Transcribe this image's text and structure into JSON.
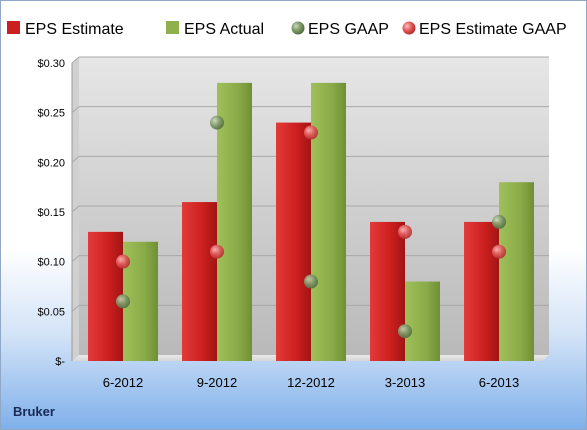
{
  "company": "Bruker",
  "chart_data": {
    "type": "bar",
    "categories": [
      "6-2012",
      "9-2012",
      "12-2012",
      "3-2013",
      "6-2013"
    ],
    "series": [
      {
        "name": "EPS Estimate",
        "kind": "bar",
        "color": "#cc1f1f",
        "values": [
          0.13,
          0.16,
          0.24,
          0.14,
          0.14
        ]
      },
      {
        "name": "EPS Actual",
        "kind": "bar",
        "color": "#8fb04a",
        "values": [
          0.12,
          0.28,
          0.28,
          0.08,
          0.18
        ]
      },
      {
        "name": "EPS GAAP",
        "kind": "marker",
        "color": "#7f9a68",
        "values": [
          0.06,
          0.24,
          0.08,
          0.03,
          0.14
        ]
      },
      {
        "name": "EPS Estimate GAAP",
        "kind": "marker",
        "color": "#e25a5a",
        "values": [
          0.1,
          0.11,
          0.23,
          0.13,
          0.11
        ]
      }
    ],
    "yticks": [
      0,
      0.05,
      0.1,
      0.15,
      0.2,
      0.25,
      0.3
    ],
    "ytick_labels": [
      "$-",
      "$0.05",
      "$0.10",
      "$0.15",
      "$0.20",
      "$0.25",
      "$0.30"
    ],
    "ylim": [
      0,
      0.3
    ],
    "grid": true,
    "legend": "top"
  }
}
